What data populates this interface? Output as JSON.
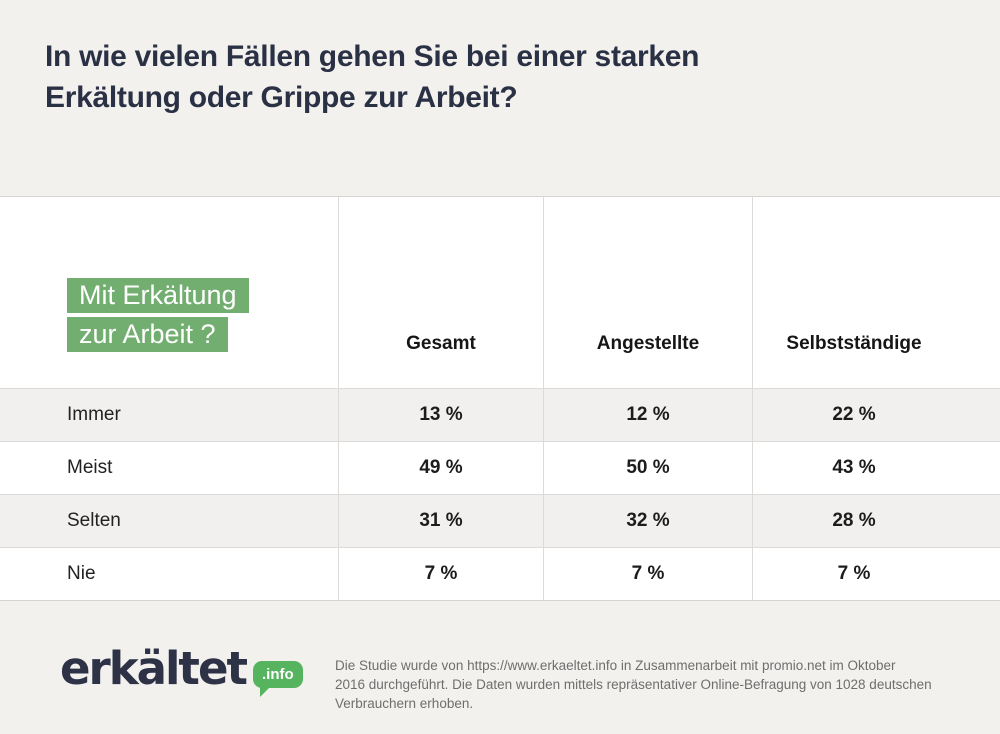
{
  "title": {
    "line1": "In wie vielen Fällen gehen Sie bei einer starken",
    "line2": "Erkältung oder Grippe zur Arbeit?"
  },
  "table": {
    "row_header": {
      "line1": "Mit Erkältung",
      "line2": "zur Arbeit ?"
    },
    "columns": [
      "Gesamt",
      "Angestellte",
      "Selbstständige"
    ],
    "rows": [
      {
        "label": "Immer",
        "values": [
          "13 %",
          "12 %",
          "22 %"
        ]
      },
      {
        "label": "Meist",
        "values": [
          "49 %",
          "50 %",
          "43 %"
        ]
      },
      {
        "label": "Selten",
        "values": [
          "31 %",
          "32 %",
          "28 %"
        ]
      },
      {
        "label": "Nie",
        "values": [
          "7 %",
          "7 %",
          "7 %"
        ]
      }
    ]
  },
  "footer": {
    "logo_text": "erkältet",
    "logo_badge": ".info",
    "disclaimer_lines": [
      "Die Studie wurde von https://www.erkaeltet.info in Zusammenarbeit mit promio.net im Oktober",
      "2016 durchgeführt. Die Daten wurden mittels repräsentativer Online-Befragung von 1028 deutschen",
      "Verbrauchern erhoben."
    ]
  },
  "colors": {
    "background_beige": "#f3f1ee",
    "title_navy": "#2b3145",
    "highlight_green": "#73ae71",
    "badge_green": "#56b45f",
    "row_shade": "#f2f0ee",
    "border_gray": "#dcd9d6",
    "disclaimer_gray": "#6e6e6e"
  },
  "chart_data": {
    "type": "table",
    "title": "In wie vielen Fällen gehen Sie bei einer starken Erkältung oder Grippe zur Arbeit?",
    "subtitle": "Mit Erkältung zur Arbeit ?",
    "categories": [
      "Immer",
      "Meist",
      "Selten",
      "Nie"
    ],
    "series": [
      {
        "name": "Gesamt",
        "values": [
          13,
          49,
          31,
          7
        ]
      },
      {
        "name": "Angestellte",
        "values": [
          12,
          50,
          32,
          7
        ]
      },
      {
        "name": "Selbstständige",
        "values": [
          22,
          43,
          28,
          7
        ]
      }
    ],
    "unit": "%",
    "source_note": "Die Studie wurde von https://www.erkaeltet.info in Zusammenarbeit mit promio.net im Oktober 2016 durchgeführt. Die Daten wurden mittels repräsentativer Online-Befragung von 1028 deutschen Verbrauchern erhoben."
  }
}
